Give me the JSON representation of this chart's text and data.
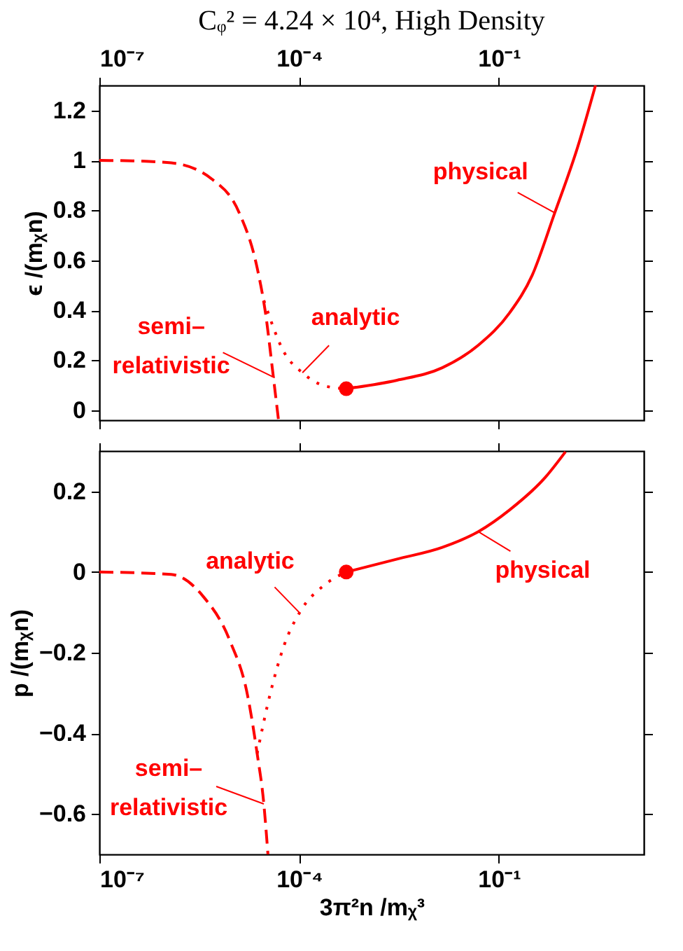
{
  "chart_data": [
    {
      "type": "line",
      "title": "Cᵩ² = 4.24 × 10⁴, High Density",
      "ylabel": "ϵ /(mᵪn)",
      "log": "x",
      "xlim": [
        1e-07,
        15
      ],
      "xticks": [
        {
          "value": 1e-07,
          "label": "10⁻⁷"
        },
        {
          "value": 0.0001,
          "label": "10⁻⁴"
        },
        {
          "value": 0.1,
          "label": "10⁻¹"
        }
      ],
      "ylim": [
        -0.04,
        1.3
      ],
      "yticks": [
        0,
        0.2,
        0.4,
        0.6,
        0.8,
        1,
        1.2
      ],
      "series": [
        {
          "line_style": "dashed",
          "color": "#ff0000",
          "x": [
            1e-07,
            3.16e-07,
            1.2e-06,
            4.9e-06,
            1.26e-05,
            2.34e-05,
            3.16e-05,
            4.07e-05,
            4.9e-05
          ],
          "values": [
            1.0,
            0.998,
            0.99,
            0.925,
            0.79,
            0.57,
            0.38,
            0.14,
            -0.04
          ]
        },
        {
          "line_style": "dotted",
          "color": "#ff0000",
          "x": [
            2.95e-05,
            6e-05,
            0.000112,
            0.000245,
            0.00051
          ],
          "values": [
            0.44,
            0.23,
            0.15,
            0.097,
            0.086
          ]
        },
        {
          "line_style": "solid",
          "color": "#ff0000",
          "x": [
            0.00051,
            0.00295,
            0.0141,
            0.049,
            0.145,
            0.316,
            0.69,
            1.51,
            2.82
          ],
          "values": [
            0.086,
            0.12,
            0.17,
            0.26,
            0.39,
            0.54,
            0.79,
            1.05,
            1.3
          ]
        },
        {
          "type": "scatter",
          "marker": "circle",
          "color": "#ff0000",
          "x": [
            0.00051
          ],
          "values": [
            0.086
          ]
        }
      ],
      "annotations": [
        {
          "text": "physical",
          "x": 0.69,
          "y": 0.79
        },
        {
          "text": "analytic",
          "x": 0.000112,
          "y": 0.15
        },
        {
          "text": "semi–\nrelativistic",
          "x": 4.3e-05,
          "y": 0.13
        }
      ]
    },
    {
      "type": "line",
      "xlabel": "3π²n /mᵪ³",
      "ylabel": "p /(mᵪn)",
      "log": "x",
      "xlim": [
        1e-07,
        15
      ],
      "xticks": [
        {
          "value": 1e-07,
          "label": "10⁻⁷"
        },
        {
          "value": 0.0001,
          "label": "10⁻⁴"
        },
        {
          "value": 0.1,
          "label": "10⁻¹"
        }
      ],
      "ylim": [
        -0.7,
        0.3
      ],
      "yticks": [
        {
          "value": -0.6,
          "label": "−0.6"
        },
        {
          "value": -0.4,
          "label": "−0.4"
        },
        {
          "value": -0.2,
          "label": "−0.2"
        },
        0,
        0.2
      ],
      "series": [
        {
          "line_style": "dashed",
          "color": "#ff0000",
          "x": [
            1e-07,
            1.2e-06,
            3.6e-06,
            9.1e-06,
            1.7e-05,
            2.34e-05,
            2.95e-05,
            3.4e-05
          ],
          "values": [
            0,
            -0.006,
            -0.06,
            -0.17,
            -0.31,
            -0.45,
            -0.575,
            -0.7
          ]
        },
        {
          "line_style": "dotted",
          "color": "#ff0000",
          "x": [
            2.34e-05,
            3.7e-05,
            6e-05,
            0.000102,
            0.000245,
            0.00051
          ],
          "values": [
            -0.45,
            -0.3,
            -0.18,
            -0.1,
            -0.031,
            0
          ]
        },
        {
          "line_style": "solid",
          "color": "#ff0000",
          "x": [
            0.00051,
            0.00295,
            0.0141,
            0.049,
            0.145,
            0.5,
            1.0
          ],
          "values": [
            0,
            0.032,
            0.061,
            0.1,
            0.154,
            0.235,
            0.298
          ]
        },
        {
          "type": "scatter",
          "marker": "circle",
          "color": "#ff0000",
          "x": [
            0.00051
          ],
          "values": [
            0
          ]
        }
      ],
      "annotations": [
        {
          "text": "analytic",
          "x": 0.0001,
          "y": -0.1
        },
        {
          "text": "physical",
          "x": 0.049,
          "y": 0.1
        },
        {
          "text": "semi–\nrelativistic",
          "x": 2.95e-05,
          "y": -0.575
        }
      ]
    }
  ]
}
